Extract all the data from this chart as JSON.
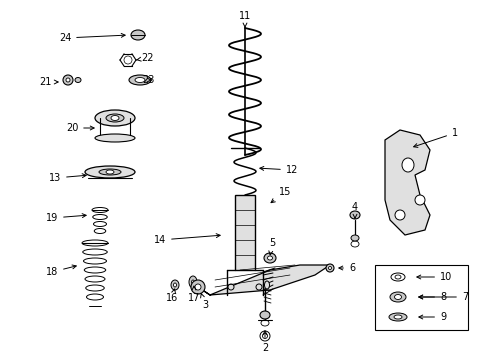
{
  "bg_color": "#ffffff",
  "fig_width": 4.89,
  "fig_height": 3.6,
  "dpi": 100,
  "text_color": "#000000",
  "label_fontsize": 7.0,
  "arrow_color": "#000000",
  "line_color": "#000000",
  "gray_fill": "#c8c8c8",
  "light_gray": "#e0e0e0"
}
